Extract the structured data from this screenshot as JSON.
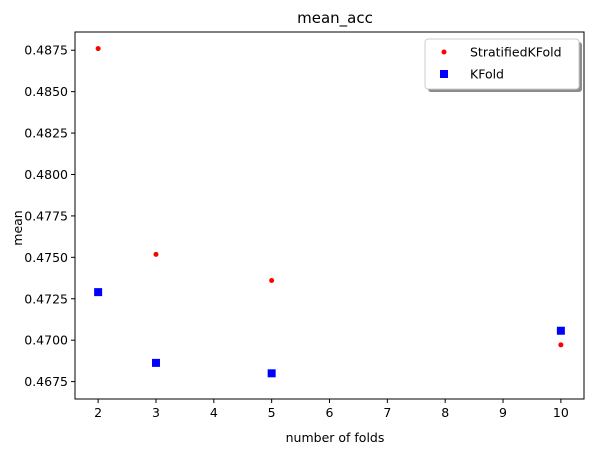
{
  "chart_data": {
    "type": "scatter",
    "title": "mean_acc",
    "xlabel": "number of folds",
    "ylabel": "mean",
    "xlim": [
      1.6,
      10.4
    ],
    "ylim": [
      0.46645,
      0.4886
    ],
    "x_ticks": [
      2,
      3,
      4,
      5,
      6,
      7,
      8,
      9,
      10
    ],
    "y_ticks": [
      0.4675,
      0.47,
      0.4725,
      0.475,
      0.4775,
      0.48,
      0.4825,
      0.485,
      0.4875
    ],
    "y_tick_labels": [
      "0.4675",
      "0.4700",
      "0.4725",
      "0.4750",
      "0.4775",
      "0.4800",
      "0.4825",
      "0.4850",
      "0.4875"
    ],
    "legend_position": "top-right",
    "grid": false,
    "series": [
      {
        "name": "StratifiedKFold",
        "marker": "circle",
        "color": "#ff0000",
        "x": [
          2,
          3,
          5,
          10
        ],
        "values": [
          0.4876,
          0.47518,
          0.4736,
          0.46972
        ]
      },
      {
        "name": "KFold",
        "marker": "square",
        "color": "#0000ff",
        "x": [
          2,
          3,
          5,
          10
        ],
        "values": [
          0.4729,
          0.46863,
          0.468,
          0.47057
        ]
      }
    ]
  }
}
